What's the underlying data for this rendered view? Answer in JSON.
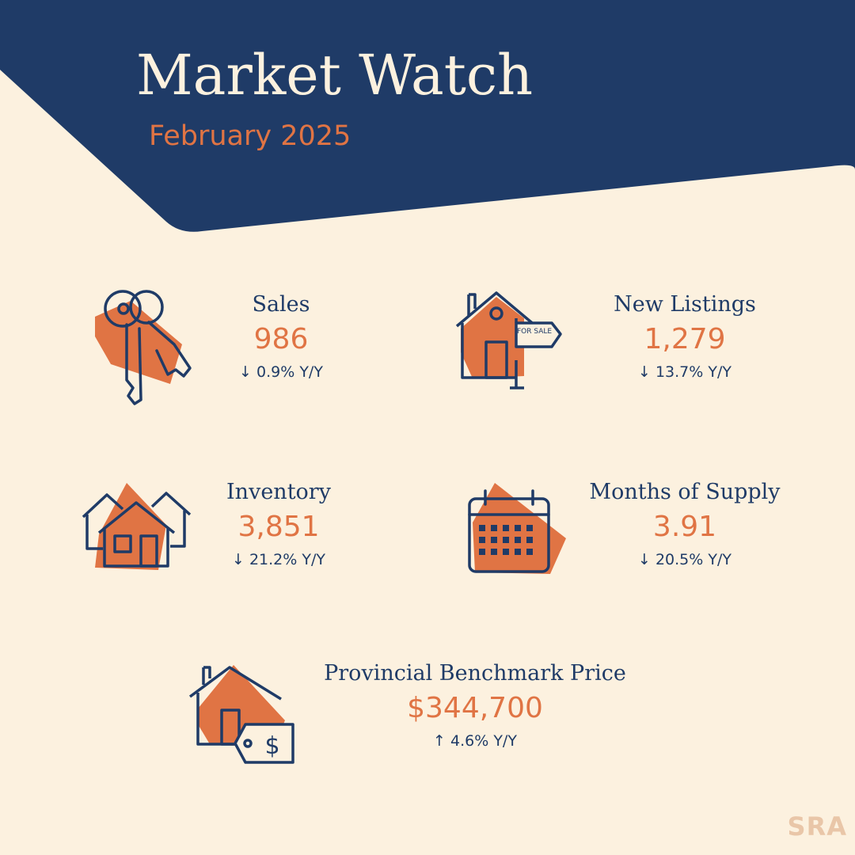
{
  "header": {
    "title": "Market Watch",
    "subtitle": "February 2025"
  },
  "stats": {
    "sales": {
      "label": "Sales",
      "value": "986",
      "change": "↓ 0.9% Y/Y",
      "icon": "house-keys-icon"
    },
    "new_listings": {
      "label": "New Listings",
      "value": "1,279",
      "change": "↓ 13.7% Y/Y",
      "icon": "for-sale-house-icon"
    },
    "inventory": {
      "label": "Inventory",
      "value": "3,851",
      "change": "↓ 21.2% Y/Y",
      "icon": "houses-icon"
    },
    "months_of_supply": {
      "label": "Months of Supply",
      "value": "3.91",
      "change": "↓ 20.5% Y/Y",
      "icon": "calendar-icon"
    },
    "benchmark_price": {
      "label": "Provincial Benchmark Price",
      "value": "$344,700",
      "change": "↑ 4.6% Y/Y",
      "icon": "house-price-tag-icon"
    }
  },
  "icon_text": {
    "for_sale": "FOR SALE"
  },
  "brand": {
    "logo_text": "SRA"
  },
  "colors": {
    "navy": "#1F3B67",
    "orange": "#E07444",
    "cream": "#FCF1DF"
  }
}
